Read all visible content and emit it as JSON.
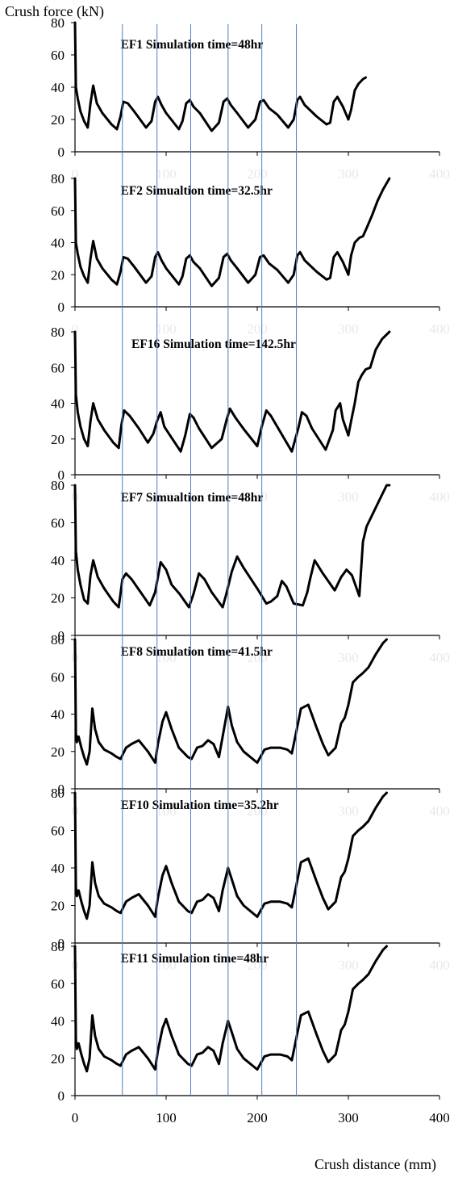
{
  "figure": {
    "ylabel": "Crush force (kN)",
    "xlabel": "Crush distance (mm)"
  },
  "reference_lines_x": [
    52,
    90,
    127,
    168,
    205,
    243
  ],
  "chart_data": [
    {
      "type": "line",
      "title": "EF1 Simulation time=48hr",
      "xlim": [
        0,
        400
      ],
      "ylim": [
        0,
        80
      ],
      "xticks": [
        "0",
        "100",
        "200",
        "300",
        "400"
      ],
      "yticks": [
        "0",
        "20",
        "40",
        "60",
        "80"
      ],
      "x_tick_labels_visible": false,
      "series": [
        {
          "x": [
            0,
            1,
            3,
            6,
            10,
            14,
            17,
            20,
            24,
            30,
            40,
            46,
            50,
            53,
            58,
            65,
            78,
            84,
            88,
            91,
            95,
            100,
            114,
            118,
            122,
            126,
            130,
            137,
            150,
            158,
            163,
            167,
            171,
            178,
            190,
            198,
            203,
            207,
            213,
            222,
            234,
            240,
            244,
            247,
            252,
            265,
            276,
            280,
            284,
            288,
            294,
            300,
            303,
            307,
            311,
            316,
            319
          ],
          "y": [
            80,
            40,
            33,
            25,
            19,
            15,
            30,
            41,
            30,
            24,
            17,
            14,
            22,
            31,
            30,
            25,
            15,
            19,
            31,
            34,
            29,
            24,
            14,
            19,
            30,
            32,
            28,
            24,
            13,
            18,
            31,
            33,
            29,
            24,
            15,
            20,
            31,
            32,
            27,
            23,
            15,
            20,
            32,
            34,
            29,
            22,
            17,
            18,
            31,
            34,
            28,
            20,
            26,
            38,
            42,
            45,
            46
          ]
        }
      ]
    },
    {
      "type": "line",
      "title": "EF2 Simualtion time=32.5hr",
      "xlim": [
        0,
        400
      ],
      "ylim": [
        0,
        80
      ],
      "xticks": [
        "0",
        "100",
        "200",
        "300",
        "400"
      ],
      "yticks": [
        "0",
        "20",
        "40",
        "60",
        "80"
      ],
      "x_tick_labels_visible": false,
      "series": [
        {
          "x": [
            0,
            1,
            3,
            6,
            10,
            14,
            17,
            20,
            24,
            30,
            40,
            46,
            50,
            53,
            58,
            65,
            78,
            84,
            88,
            91,
            95,
            100,
            114,
            118,
            122,
            126,
            130,
            137,
            150,
            158,
            163,
            167,
            171,
            178,
            190,
            198,
            203,
            207,
            213,
            222,
            234,
            240,
            244,
            247,
            252,
            265,
            276,
            280,
            284,
            288,
            294,
            300,
            303,
            307,
            312,
            316,
            320,
            326,
            332,
            338,
            345
          ],
          "y": [
            80,
            40,
            33,
            25,
            19,
            15,
            30,
            41,
            30,
            24,
            17,
            14,
            22,
            31,
            30,
            25,
            15,
            19,
            31,
            34,
            29,
            24,
            14,
            19,
            30,
            32,
            28,
            24,
            13,
            18,
            31,
            33,
            29,
            24,
            15,
            20,
            31,
            32,
            27,
            23,
            15,
            20,
            32,
            34,
            29,
            22,
            17,
            18,
            31,
            34,
            28,
            20,
            32,
            40,
            43,
            44,
            49,
            57,
            66,
            73,
            80
          ]
        }
      ]
    },
    {
      "type": "line",
      "title": "EF16 Simulation time=142.5hr",
      "xlim": [
        0,
        400
      ],
      "ylim": [
        0,
        80
      ],
      "xticks": [
        "0",
        "100",
        "200",
        "300",
        "400"
      ],
      "yticks": [
        "0",
        "20",
        "40",
        "60",
        "80"
      ],
      "x_tick_labels_visible": false,
      "series": [
        {
          "x": [
            0,
            1,
            3,
            6,
            10,
            14,
            17,
            20,
            25,
            32,
            42,
            48,
            51,
            54,
            60,
            70,
            80,
            86,
            90,
            94,
            98,
            103,
            116,
            121,
            126,
            130,
            136,
            150,
            161,
            166,
            170,
            176,
            186,
            200,
            205,
            210,
            215,
            223,
            238,
            245,
            249,
            254,
            260,
            275,
            283,
            286,
            291,
            294,
            300,
            303,
            307,
            311,
            315,
            319,
            324,
            330,
            337,
            345
          ],
          "y": [
            80,
            45,
            35,
            27,
            20,
            16,
            30,
            40,
            31,
            25,
            18,
            15,
            28,
            36,
            33,
            26,
            18,
            23,
            30,
            35,
            27,
            23,
            13,
            22,
            34,
            32,
            26,
            15,
            20,
            30,
            37,
            32,
            25,
            16,
            27,
            36,
            33,
            26,
            13,
            26,
            35,
            33,
            26,
            14,
            25,
            36,
            40,
            31,
            22,
            30,
            40,
            52,
            56,
            59,
            60,
            70,
            76,
            80
          ]
        }
      ]
    },
    {
      "type": "line",
      "title": "EF7 Simualtion time=48hr",
      "xlim": [
        0,
        400
      ],
      "ylim": [
        0,
        80
      ],
      "xticks": [
        "0",
        "100",
        "200",
        "300",
        "400"
      ],
      "yticks": [
        "0",
        "20",
        "40",
        "60",
        "80"
      ],
      "x_tick_labels_visible": false,
      "series": [
        {
          "x": [
            0,
            1,
            3,
            6,
            10,
            14,
            17,
            20,
            25,
            32,
            42,
            48,
            52,
            56,
            62,
            72,
            82,
            88,
            94,
            100,
            106,
            115,
            125,
            130,
            136,
            142,
            150,
            162,
            166,
            172,
            178,
            185,
            200,
            210,
            215,
            222,
            227,
            232,
            240,
            250,
            255,
            258,
            263,
            272,
            285,
            292,
            298,
            304,
            312,
            316,
            320,
            324,
            330,
            337,
            342,
            345
          ],
          "y": [
            80,
            45,
            35,
            27,
            19,
            17,
            32,
            40,
            31,
            25,
            18,
            15,
            30,
            33,
            30,
            23,
            16,
            23,
            39,
            35,
            27,
            22,
            15,
            22,
            33,
            30,
            23,
            15,
            22,
            34,
            42,
            36,
            25,
            17,
            18,
            21,
            29,
            26,
            17,
            16,
            23,
            30,
            40,
            33,
            24,
            31,
            35,
            32,
            21,
            50,
            58,
            62,
            68,
            75,
            80,
            80
          ]
        }
      ]
    },
    {
      "type": "line",
      "title": "EF8 Simulation time=41.5hr",
      "xlim": [
        0,
        400
      ],
      "ylim": [
        0,
        80
      ],
      "xticks": [
        "0",
        "100",
        "200",
        "300",
        "400"
      ],
      "yticks": [
        "0",
        "20",
        "40",
        "60",
        "80"
      ],
      "x_tick_labels_visible": false,
      "series": [
        {
          "x": [
            0,
            1,
            2,
            4,
            7,
            10,
            13,
            16,
            19,
            22,
            26,
            32,
            40,
            46,
            50,
            56,
            62,
            70,
            80,
            88,
            91,
            96,
            100,
            106,
            114,
            124,
            128,
            134,
            140,
            146,
            152,
            158,
            162,
            168,
            172,
            178,
            185,
            200,
            208,
            215,
            225,
            233,
            238,
            243,
            248,
            256,
            265,
            272,
            278,
            286,
            292,
            296,
            300,
            305,
            311,
            316,
            322,
            330,
            338,
            342
          ],
          "y": [
            80,
            30,
            25,
            28,
            22,
            17,
            13,
            20,
            43,
            32,
            25,
            21,
            19,
            17,
            16,
            22,
            24,
            26,
            20,
            14,
            24,
            36,
            41,
            32,
            22,
            17,
            16,
            22,
            23,
            26,
            24,
            17,
            28,
            44,
            34,
            25,
            20,
            14,
            21,
            22,
            22,
            21,
            19,
            31,
            43,
            45,
            33,
            24,
            18,
            22,
            35,
            38,
            45,
            57,
            60,
            62,
            65,
            72,
            78,
            80
          ]
        }
      ]
    },
    {
      "type": "line",
      "title": "EF10 Simulation time=35.2hr",
      "xlim": [
        0,
        400
      ],
      "ylim": [
        0,
        80
      ],
      "xticks": [
        "0",
        "100",
        "200",
        "300",
        "400"
      ],
      "yticks": [
        "0",
        "20",
        "40",
        "60",
        "80"
      ],
      "x_tick_labels_visible": false,
      "series": [
        {
          "x": [
            0,
            1,
            2,
            4,
            7,
            10,
            13,
            16,
            19,
            22,
            26,
            32,
            40,
            46,
            50,
            56,
            62,
            70,
            80,
            88,
            91,
            96,
            100,
            106,
            114,
            124,
            128,
            134,
            140,
            146,
            152,
            158,
            162,
            168,
            172,
            178,
            185,
            200,
            208,
            215,
            225,
            233,
            238,
            243,
            248,
            256,
            265,
            272,
            278,
            286,
            292,
            296,
            300,
            305,
            311,
            316,
            322,
            330,
            338,
            342
          ],
          "y": [
            80,
            30,
            25,
            28,
            22,
            17,
            13,
            20,
            43,
            32,
            25,
            21,
            19,
            17,
            16,
            22,
            24,
            26,
            20,
            14,
            24,
            36,
            41,
            32,
            22,
            17,
            16,
            22,
            23,
            26,
            24,
            17,
            28,
            40,
            34,
            25,
            20,
            14,
            21,
            22,
            22,
            21,
            19,
            31,
            43,
            45,
            33,
            24,
            18,
            22,
            35,
            38,
            45,
            57,
            60,
            62,
            65,
            72,
            78,
            80
          ]
        }
      ]
    },
    {
      "type": "line",
      "title": "EF11 Simulation time=48hr",
      "xlim": [
        0,
        400
      ],
      "ylim": [
        0,
        80
      ],
      "xticks": [
        "0",
        "100",
        "200",
        "300",
        "400"
      ],
      "yticks": [
        "0",
        "20",
        "40",
        "60",
        "80"
      ],
      "x_tick_labels_visible": true,
      "series": [
        {
          "x": [
            0,
            1,
            2,
            4,
            7,
            10,
            13,
            16,
            19,
            22,
            26,
            32,
            40,
            46,
            50,
            56,
            62,
            70,
            80,
            88,
            91,
            96,
            100,
            106,
            114,
            124,
            128,
            134,
            140,
            146,
            152,
            158,
            162,
            168,
            172,
            178,
            185,
            200,
            208,
            215,
            225,
            233,
            238,
            243,
            248,
            256,
            265,
            272,
            278,
            286,
            292,
            296,
            300,
            305,
            311,
            316,
            322,
            330,
            338,
            342
          ],
          "y": [
            80,
            30,
            25,
            28,
            22,
            17,
            13,
            20,
            43,
            32,
            25,
            21,
            19,
            17,
            16,
            22,
            24,
            26,
            20,
            14,
            24,
            36,
            41,
            32,
            22,
            17,
            16,
            22,
            23,
            26,
            24,
            17,
            28,
            40,
            34,
            25,
            20,
            14,
            21,
            22,
            22,
            21,
            19,
            31,
            43,
            45,
            33,
            24,
            18,
            22,
            35,
            38,
            45,
            57,
            60,
            62,
            65,
            72,
            78,
            80
          ]
        }
      ]
    }
  ]
}
